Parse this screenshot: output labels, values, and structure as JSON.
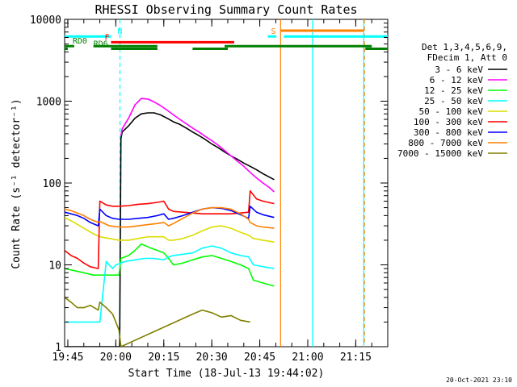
{
  "chart_data": {
    "type": "line",
    "title": "RHESSI Observing Summary Count Rates",
    "xlabel": "Start Time (18-Jul-13 19:44:02)",
    "ylabel": "Count Rate (s⁻¹ detector⁻¹)",
    "x_unit": "minutes after 19:44:02",
    "xlim": [
      0,
      101
    ],
    "ylim": [
      1,
      10000
    ],
    "yscale": "log",
    "xticks": [
      {
        "x": 1,
        "label": "19:45"
      },
      {
        "x": 16,
        "label": "20:00"
      },
      {
        "x": 31,
        "label": "20:15"
      },
      {
        "x": 46,
        "label": "20:30"
      },
      {
        "x": 61,
        "label": "20:45"
      },
      {
        "x": 76,
        "label": "21:00"
      },
      {
        "x": 91,
        "label": "21:15"
      }
    ],
    "yticks": [
      {
        "y": 1,
        "label": "1"
      },
      {
        "y": 10,
        "label": "10"
      },
      {
        "y": 100,
        "label": "100"
      },
      {
        "y": 1000,
        "label": "1000"
      },
      {
        "y": 10000,
        "label": "10000"
      }
    ],
    "legend_header": [
      "Det 1,3,4,5,6,9,",
      "FDecim 1, Att 0"
    ],
    "legend_position": "right",
    "series": [
      {
        "name": "3 - 6 keV",
        "color": "#000000",
        "x": [
          0,
          3,
          6,
          9,
          12,
          15,
          16.5,
          17.2,
          17.6,
          18,
          20,
          22,
          24,
          26,
          28,
          30,
          32,
          34,
          36,
          38,
          40,
          42,
          44,
          46,
          48,
          50,
          52,
          54,
          56,
          58,
          60,
          62,
          64,
          65.5
        ],
        "y": [
          1,
          1,
          1,
          1,
          1,
          1,
          1,
          1,
          350,
          420,
          500,
          620,
          700,
          720,
          720,
          680,
          620,
          560,
          520,
          470,
          420,
          380,
          340,
          300,
          270,
          240,
          215,
          195,
          175,
          160,
          145,
          130,
          118,
          110
        ]
      },
      {
        "name": "6 - 12 keV",
        "color": "#ff00ff",
        "x": [
          17.6,
          18,
          20,
          22,
          24,
          26,
          28,
          30,
          32,
          34,
          36,
          38,
          40,
          42,
          44,
          46,
          48,
          50,
          52,
          54,
          56,
          58,
          60,
          62,
          64,
          65.5
        ],
        "y": [
          380,
          460,
          620,
          900,
          1080,
          1060,
          980,
          880,
          780,
          680,
          600,
          530,
          470,
          420,
          370,
          330,
          290,
          250,
          215,
          185,
          160,
          135,
          115,
          100,
          88,
          78
        ]
      },
      {
        "name": "12 - 25 keV",
        "color": "#00ff00",
        "x": [
          0,
          3,
          6,
          9,
          11,
          14,
          17,
          17.6,
          20,
          22,
          24,
          27,
          29,
          31,
          32.5,
          34,
          37,
          40,
          43,
          46,
          49,
          52,
          55,
          57.5,
          59,
          62,
          65.5
        ],
        "y": [
          9,
          8.5,
          8,
          7.5,
          7.5,
          7.5,
          7.5,
          12,
          13,
          15,
          18,
          16,
          15,
          14,
          12,
          10,
          10.5,
          11.5,
          12.5,
          13,
          12,
          11,
          10,
          9,
          6.5,
          6,
          5.5
        ]
      },
      {
        "name": "25 - 50 keV",
        "color": "#00ffff",
        "x": [
          0,
          2,
          4,
          6,
          8,
          11,
          13,
          15,
          16,
          17.6,
          19,
          22,
          25,
          28,
          31,
          32.5,
          34,
          37,
          40,
          43,
          46,
          49,
          52,
          55,
          57.5,
          59,
          62,
          65.5
        ],
        "y": [
          2,
          2,
          2,
          2,
          2,
          2,
          11,
          9,
          10,
          10.5,
          11,
          11.5,
          12,
          12,
          11.5,
          12.5,
          13,
          13.5,
          14,
          16,
          17,
          16,
          14,
          13,
          12.5,
          10,
          9.5,
          9
        ]
      },
      {
        "name": "50 - 100 keV",
        "color": "#dddd00",
        "x": [
          0,
          3,
          6,
          9,
          11,
          14,
          17,
          20,
          23,
          26,
          29,
          31,
          32.5,
          34,
          37,
          40,
          43,
          46,
          49,
          52,
          55,
          57.5,
          59,
          62,
          65.5
        ],
        "y": [
          38,
          33,
          28,
          24,
          22,
          21,
          20,
          20,
          21,
          22,
          22,
          22,
          20,
          20,
          21,
          23,
          26,
          29,
          30,
          28,
          25,
          23,
          21,
          20,
          19
        ]
      },
      {
        "name": "100 - 300 keV",
        "color": "#ff0000",
        "x": [
          0,
          2,
          4,
          6,
          8,
          10.5,
          11,
          13,
          15,
          17,
          20,
          23,
          26,
          29,
          31,
          32.5,
          34,
          37,
          40,
          43,
          46,
          49,
          52,
          55,
          57.5,
          58,
          60,
          62,
          65.5
        ],
        "y": [
          15,
          13,
          12,
          10.5,
          9.5,
          9,
          60,
          54,
          52,
          52,
          53,
          55,
          56,
          58,
          60,
          48,
          45,
          44,
          43,
          42,
          42,
          42,
          42,
          43,
          44,
          80,
          64,
          60,
          56
        ]
      },
      {
        "name": "300 - 800 keV",
        "color": "#0000ff",
        "x": [
          0,
          2,
          4,
          6,
          8,
          10.5,
          11,
          13,
          15,
          17,
          20,
          23,
          26,
          29,
          31,
          32.5,
          34,
          37,
          40,
          43,
          46,
          49,
          52,
          55,
          57.5,
          58,
          60,
          62,
          65.5
        ],
        "y": [
          44,
          42,
          40,
          37,
          33,
          30,
          48,
          40,
          37,
          36,
          36,
          37,
          38,
          40,
          42,
          36,
          37,
          40,
          44,
          48,
          50,
          49,
          46,
          41,
          37,
          52,
          44,
          41,
          38
        ]
      },
      {
        "name": "800 - 7000 keV",
        "color": "#ff8000",
        "x": [
          0,
          2,
          4,
          6,
          8,
          10.5,
          11,
          14,
          17,
          20,
          23,
          26,
          29,
          31,
          32.5,
          34,
          37,
          40,
          43,
          46,
          49,
          52,
          55,
          57.5,
          58,
          60,
          62,
          65.5
        ],
        "y": [
          48,
          46,
          43,
          40,
          36,
          33,
          34,
          30,
          29,
          29,
          30,
          31,
          32,
          33,
          30,
          32,
          37,
          43,
          48,
          50,
          50,
          48,
          42,
          36,
          33,
          30,
          29,
          28
        ]
      },
      {
        "name": "7000 - 15000 keV",
        "color": "#808000",
        "x": [
          0,
          2,
          4,
          6,
          8,
          10.5,
          11,
          13,
          15,
          16,
          17,
          17.6,
          40,
          43,
          46,
          49,
          52,
          55,
          58
        ],
        "y": [
          4,
          3.5,
          3,
          3,
          3.2,
          2.8,
          3.5,
          3,
          2.5,
          2,
          1.6,
          1,
          2.5,
          2.8,
          2.6,
          2.3,
          2.4,
          2.1,
          2
        ]
      }
    ],
    "state_bars": [
      {
        "label": "",
        "color": "#00ffff",
        "level": 0.15,
        "segments": [
          [
            0,
            14.5
          ],
          [
            63.5,
            66.2
          ],
          [
            68.5,
            101
          ]
        ]
      },
      {
        "label": "N",
        "color": "#00ffff",
        "level": 0.15,
        "segments": [],
        "label_at": 16.5
      },
      {
        "label": "F",
        "color": "#ff0000",
        "level": 0.3,
        "segments": [
          [
            14.5,
            53
          ]
        ],
        "label_at": 12.5
      },
      {
        "label": "S",
        "color": "#ff8000",
        "level": 0.0,
        "segments": [
          [
            67.5,
            93.5
          ]
        ],
        "label_at": 64.5
      },
      {
        "label": "RD0",
        "color": "#008000",
        "level": 0.4,
        "segments": [
          [
            0,
            3
          ],
          [
            9,
            29
          ],
          [
            50,
            96
          ]
        ],
        "label_at": 2.5
      },
      {
        "label": "RD6",
        "color": "#008000",
        "level": 0.47,
        "segments": [
          [
            0,
            1
          ],
          [
            14.5,
            29
          ],
          [
            40,
            51
          ],
          [
            94,
            101
          ]
        ],
        "label_at": 9
      }
    ],
    "vertical_markers": [
      {
        "x": 17.3,
        "color": "#00ffff",
        "style": "dashed"
      },
      {
        "x": 67.5,
        "color": "#ff8000",
        "style": "solid"
      },
      {
        "x": 77.5,
        "color": "#00ffff",
        "style": "solid"
      },
      {
        "x": 93.5,
        "color": "#00ffff",
        "style": "solid"
      },
      {
        "x": 93.7,
        "color": "#ff8000",
        "style": "dashed"
      }
    ]
  },
  "footer": {
    "timestamp": "20-Oct-2021 23:10"
  },
  "colors": {
    "background": "#ffffff",
    "axes": "#000000"
  }
}
